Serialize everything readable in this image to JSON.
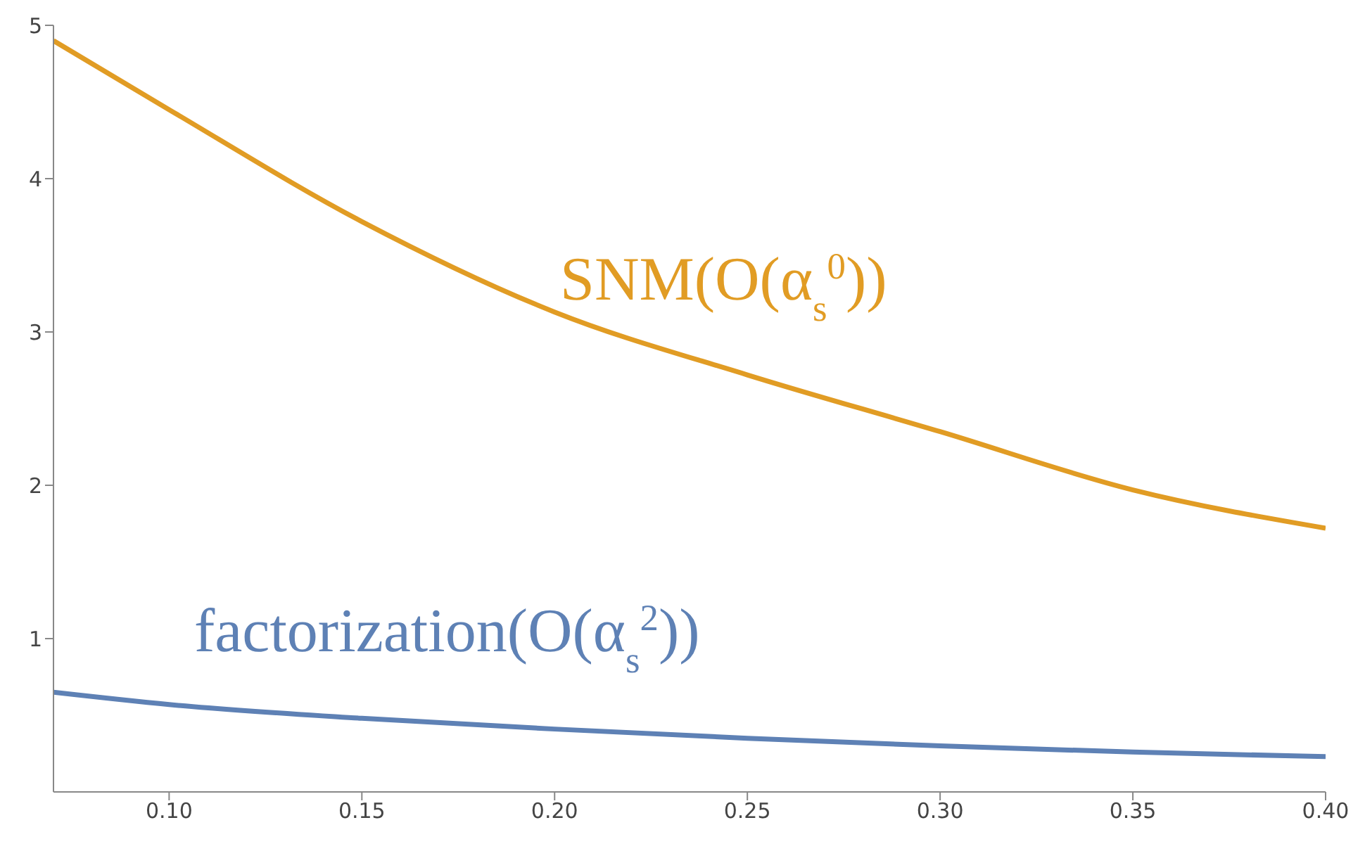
{
  "chart_data": {
    "type": "line",
    "x": [
      0.07,
      0.1,
      0.15,
      0.2,
      0.25,
      0.3,
      0.35,
      0.4
    ],
    "series": [
      {
        "name": "SNM(O(α$_{s}$$^{0}$))",
        "color": "#e19c24",
        "values": [
          4.9,
          4.45,
          3.72,
          3.13,
          2.72,
          2.35,
          1.97,
          1.72
        ]
      },
      {
        "name": "factorization(O(α$_{s}$$^{2}$))",
        "color": "#5e81b5",
        "values": [
          0.65,
          0.57,
          0.48,
          0.41,
          0.35,
          0.3,
          0.26,
          0.23
        ]
      }
    ],
    "xlim": [
      0.07,
      0.4
    ],
    "xticks": [
      {
        "value": 0.1,
        "label": "0.10"
      },
      {
        "value": 0.15,
        "label": "0.15"
      },
      {
        "value": 0.2,
        "label": "0.20"
      },
      {
        "value": 0.25,
        "label": "0.25"
      },
      {
        "value": 0.3,
        "label": "0.30"
      },
      {
        "value": 0.35,
        "label": "0.35"
      },
      {
        "value": 0.4,
        "label": "0.40"
      }
    ],
    "ylim": [
      0,
      5
    ],
    "yticks": [
      1,
      2,
      3,
      4,
      5
    ],
    "grid": false,
    "marker": "none",
    "line_style": "solid"
  }
}
